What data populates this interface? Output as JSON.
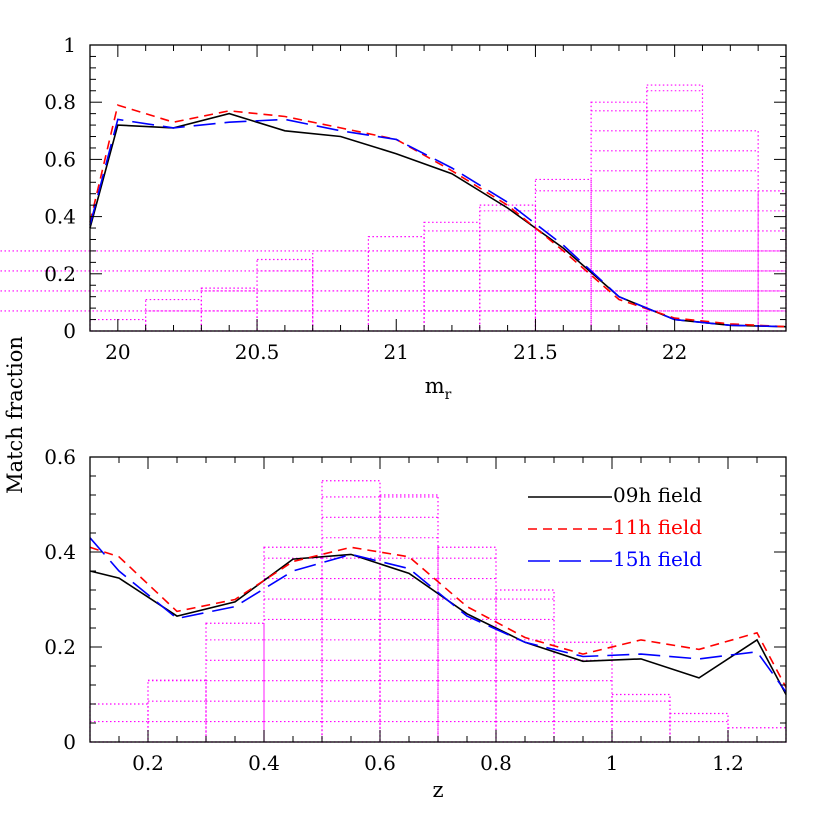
{
  "figure": {
    "shared_ylabel": "Match fraction"
  },
  "colors": {
    "s09": "#000000",
    "s11": "#ff0000",
    "s15": "#0000ff",
    "hist": "#ff00ff"
  },
  "chart_data": [
    {
      "type": "line",
      "xlabel": "m",
      "xlabel_sub": "r",
      "xlim": [
        19.9,
        22.4
      ],
      "ylim": [
        0,
        1
      ],
      "xticks": [
        20,
        20.5,
        21,
        21.5,
        22
      ],
      "xtick_labels": [
        "20",
        "20.5",
        "21",
        "21.5",
        "22"
      ],
      "yticks": [
        0,
        0.2,
        0.4,
        0.6,
        0.8,
        1
      ],
      "ytick_labels": [
        "0",
        "0.2",
        "0.4",
        "0.6",
        "0.8",
        "1"
      ],
      "series": [
        {
          "key": "s09",
          "style": "solid",
          "x": [
            19.9,
            20.0,
            20.2,
            20.4,
            20.6,
            20.8,
            21.0,
            21.2,
            21.4,
            21.6,
            21.8,
            22.0,
            22.2,
            22.4
          ],
          "y": [
            0.36,
            0.72,
            0.71,
            0.76,
            0.7,
            0.68,
            0.62,
            0.55,
            0.43,
            0.29,
            0.12,
            0.04,
            0.02,
            0.015
          ]
        },
        {
          "key": "s11",
          "style": "short-dash",
          "x": [
            19.9,
            20.0,
            20.2,
            20.4,
            20.6,
            20.8,
            21.0,
            21.2,
            21.4,
            21.6,
            21.8,
            22.0,
            22.2,
            22.4
          ],
          "y": [
            0.38,
            0.79,
            0.73,
            0.77,
            0.75,
            0.71,
            0.67,
            0.56,
            0.44,
            0.28,
            0.11,
            0.045,
            0.025,
            0.015
          ]
        },
        {
          "key": "s15",
          "style": "long-dash",
          "x": [
            19.9,
            20.0,
            20.2,
            20.4,
            20.6,
            20.8,
            21.0,
            21.2,
            21.4,
            21.6,
            21.8,
            22.0,
            22.2,
            22.4
          ],
          "y": [
            0.37,
            0.74,
            0.71,
            0.73,
            0.74,
            0.7,
            0.67,
            0.57,
            0.45,
            0.3,
            0.12,
            0.04,
            0.02,
            0.015
          ]
        }
      ],
      "histogram": {
        "edges": [
          19.9,
          20.1,
          20.3,
          20.5,
          20.7,
          20.9,
          21.1,
          21.3,
          21.5,
          21.7,
          21.9,
          22.1,
          22.3,
          22.4
        ],
        "heights": [
          0.04,
          0.11,
          0.15,
          0.25,
          0.28,
          0.33,
          0.38,
          0.44,
          0.53,
          0.8,
          0.86,
          0.7,
          0.49,
          0.29
        ],
        "fill_spacing": 0.07
      }
    },
    {
      "type": "line",
      "xlabel": "z",
      "xlim": [
        0.1,
        1.3
      ],
      "ylim": [
        0,
        0.6
      ],
      "xticks": [
        0.2,
        0.4,
        0.6,
        0.8,
        1,
        1.2
      ],
      "xtick_labels": [
        "0.2",
        "0.4",
        "0.6",
        "0.8",
        "1",
        "1.2"
      ],
      "yticks": [
        0,
        0.2,
        0.4,
        0.6
      ],
      "ytick_labels": [
        "0",
        "0.2",
        "0.4",
        "0.6"
      ],
      "legend": "top-right",
      "series": [
        {
          "key": "s09",
          "name": "09h  field",
          "style": "solid",
          "x": [
            0.1,
            0.15,
            0.25,
            0.35,
            0.45,
            0.55,
            0.65,
            0.75,
            0.85,
            0.95,
            1.05,
            1.15,
            1.25,
            1.3
          ],
          "y": [
            0.36,
            0.345,
            0.265,
            0.295,
            0.385,
            0.395,
            0.355,
            0.27,
            0.21,
            0.17,
            0.175,
            0.135,
            0.215,
            0.1
          ]
        },
        {
          "key": "s11",
          "name": "11h  field",
          "style": "short-dash",
          "x": [
            0.1,
            0.15,
            0.25,
            0.35,
            0.45,
            0.55,
            0.65,
            0.75,
            0.85,
            0.95,
            1.05,
            1.15,
            1.25,
            1.3
          ],
          "y": [
            0.41,
            0.39,
            0.275,
            0.3,
            0.38,
            0.41,
            0.39,
            0.285,
            0.22,
            0.185,
            0.215,
            0.195,
            0.23,
            0.115
          ]
        },
        {
          "key": "s15",
          "name": "15h  field",
          "style": "long-dash",
          "x": [
            0.1,
            0.15,
            0.25,
            0.35,
            0.45,
            0.55,
            0.65,
            0.75,
            0.85,
            0.95,
            1.05,
            1.15,
            1.25,
            1.3
          ],
          "y": [
            0.43,
            0.36,
            0.26,
            0.285,
            0.36,
            0.395,
            0.365,
            0.265,
            0.21,
            0.18,
            0.185,
            0.175,
            0.19,
            0.105
          ]
        }
      ],
      "histogram": {
        "edges": [
          0.1,
          0.2,
          0.3,
          0.4,
          0.5,
          0.6,
          0.7,
          0.8,
          0.9,
          1.0,
          1.1,
          1.2,
          1.3
        ],
        "heights": [
          0.08,
          0.13,
          0.25,
          0.41,
          0.55,
          0.52,
          0.41,
          0.32,
          0.21,
          0.1,
          0.06,
          0.03,
          0.01
        ],
        "fill_spacing": 0.043
      }
    }
  ]
}
